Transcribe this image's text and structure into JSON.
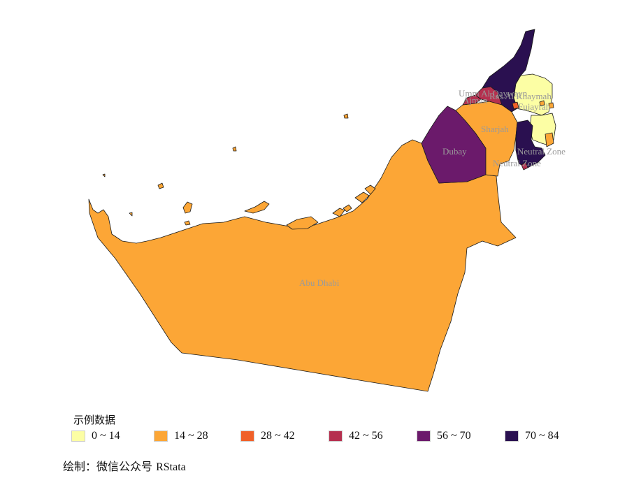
{
  "regions": [
    {
      "id": "abu-dhabi",
      "name": "Abu Dhabi",
      "bin": 1,
      "color": "#fca636"
    },
    {
      "id": "dubay",
      "name": "Dubay",
      "bin": 4,
      "color": "#6b1a6b"
    },
    {
      "id": "sharjah",
      "name": "Sharjah",
      "bin": 1,
      "color": "#fca636"
    },
    {
      "id": "ajman",
      "name": "Ajman",
      "bin": 3,
      "color": "#b5304f"
    },
    {
      "id": "umm-al-qaywayn",
      "name": "Umm Al Qaywayn",
      "bin": 3,
      "color": "#b5304f"
    },
    {
      "id": "ras-al-khaymah",
      "name": "Ras Al Khaymah",
      "bin": 5,
      "color": "#2a1050"
    },
    {
      "id": "fujayrah",
      "name": "Fujayrah",
      "bin": 0,
      "color": "#fcfea4"
    },
    {
      "id": "neutral-zone-1",
      "name": "Neutral Zone",
      "bin": 5,
      "color": "#2a1050"
    },
    {
      "id": "neutral-zone-2",
      "name": "Neutral Zone",
      "bin": 2,
      "color": "#f06029"
    }
  ],
  "legend": {
    "title": "示例数据",
    "items": [
      {
        "label": "0 ~ 14",
        "color": "#fcfea4"
      },
      {
        "label": "14 ~ 28",
        "color": "#fca636"
      },
      {
        "label": "28 ~ 42",
        "color": "#f06029"
      },
      {
        "label": "42 ~ 56",
        "color": "#b5304f"
      },
      {
        "label": "56 ~ 70",
        "color": "#6b1a6b"
      },
      {
        "label": "70 ~ 84",
        "color": "#2a1050"
      }
    ]
  },
  "caption": {
    "prefix": "绘制：微信公众号 ",
    "brand": "RStata"
  }
}
